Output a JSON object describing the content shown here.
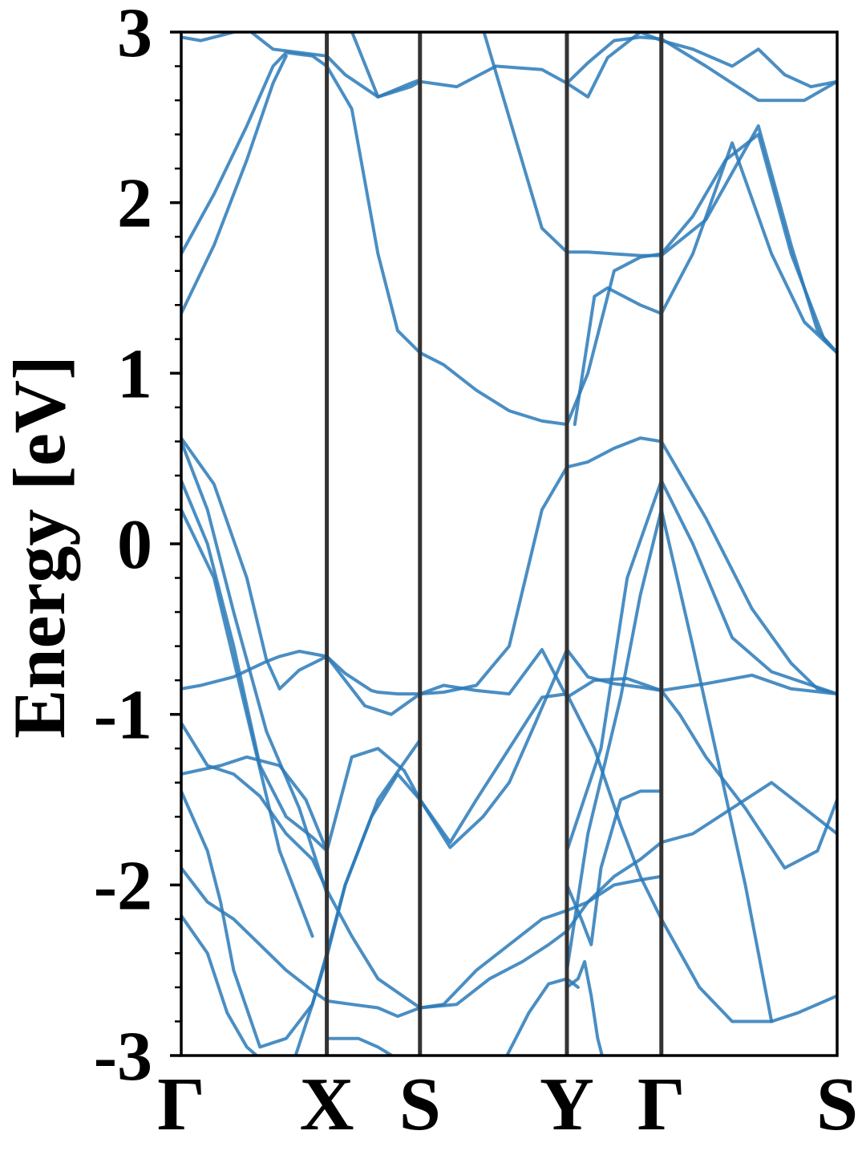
{
  "chart_data": {
    "type": "line",
    "title": "",
    "xlabel": "",
    "ylabel": "Energy [eV]",
    "ylim": [
      -3,
      3
    ],
    "y_ticks": [
      {
        "value": 3,
        "label": "3"
      },
      {
        "value": 2,
        "label": "2"
      },
      {
        "value": 1,
        "label": "1"
      },
      {
        "value": 0,
        "label": "0"
      },
      {
        "value": -1,
        "label": "-1"
      },
      {
        "value": -2,
        "label": "-2"
      },
      {
        "value": -3,
        "label": "-3"
      }
    ],
    "k_points": [
      {
        "label": "Γ",
        "pos": 0.0
      },
      {
        "label": "X",
        "pos": 0.222
      },
      {
        "label": "S",
        "pos": 0.364
      },
      {
        "label": "Y",
        "pos": 0.588
      },
      {
        "label": "Γ",
        "pos": 0.732
      },
      {
        "label": "S",
        "pos": 1.0
      }
    ],
    "xlim": [
      0,
      1
    ],
    "grid": false,
    "colors": {
      "bands": "#2a7ab9",
      "high_symmetry_lines": "#333333",
      "axes": "#000000"
    },
    "series": [
      {
        "x": [
          0.0,
          0.03,
          0.08,
          0.13,
          0.15,
          0.18,
          0.222,
          0.25,
          0.29,
          0.3,
          0.33,
          0.364,
          0.4,
          0.45,
          0.5,
          0.55,
          0.588,
          0.62,
          0.66,
          0.7,
          0.732,
          0.8,
          0.87,
          0.93,
          0.97,
          1.0
        ],
        "values": [
          -0.85,
          -0.83,
          -0.78,
          -0.69,
          -0.66,
          -0.63,
          -0.66,
          -0.76,
          -0.86,
          -0.87,
          -0.88,
          -0.88,
          -0.87,
          -0.83,
          -0.6,
          0.2,
          0.45,
          0.48,
          0.56,
          0.62,
          0.6,
          0.15,
          -0.38,
          -0.7,
          -0.85,
          -0.88
        ]
      },
      {
        "x": [
          0.0,
          0.05,
          0.1,
          0.13,
          0.15,
          0.18,
          0.222,
          0.25,
          0.28,
          0.32,
          0.364,
          0.4,
          0.45,
          0.5,
          0.55,
          0.588,
          0.63,
          0.68,
          0.732,
          0.8,
          0.87,
          0.93,
          1.0
        ],
        "values": [
          0.62,
          0.35,
          -0.2,
          -0.68,
          -0.85,
          -0.74,
          -0.66,
          -0.8,
          -0.95,
          -1.0,
          -0.88,
          -0.83,
          -0.86,
          -0.88,
          -0.62,
          -0.9,
          -0.8,
          -0.79,
          -0.86,
          -0.82,
          -0.77,
          -0.85,
          -0.88
        ]
      },
      {
        "x": [
          0.0,
          0.06,
          0.1,
          0.15,
          0.19,
          0.222,
          0.26,
          0.3,
          0.34,
          0.364,
          0.41,
          0.45,
          0.5,
          0.55,
          0.588,
          0.63,
          0.67,
          0.7,
          0.732,
          0.79,
          0.84,
          0.9,
          0.94,
          1.0
        ],
        "values": [
          -1.35,
          -1.3,
          -1.25,
          -1.3,
          -1.5,
          -1.8,
          -1.25,
          -1.2,
          -1.33,
          -1.5,
          -1.75,
          -1.5,
          -1.2,
          -0.9,
          -0.88,
          -1.2,
          -1.65,
          -1.95,
          -2.2,
          -2.6,
          -2.8,
          -2.8,
          -2.75,
          -2.65
        ]
      },
      {
        "x": [
          0.0,
          0.04,
          0.08,
          0.12,
          0.16,
          0.2,
          0.222,
          0.26,
          0.3,
          0.364,
          0.42,
          0.47,
          0.52,
          0.56,
          0.588,
          0.62,
          0.66,
          0.7,
          0.732,
          0.78,
          0.84,
          0.9,
          0.95,
          1.0
        ],
        "values": [
          -1.05,
          -1.3,
          -1.35,
          -1.48,
          -1.7,
          -1.85,
          -2.03,
          -2.3,
          -2.55,
          -2.72,
          -2.7,
          -2.55,
          -2.45,
          -2.35,
          -2.27,
          -2.1,
          -1.95,
          -1.85,
          -1.75,
          -1.7,
          -1.55,
          -1.4,
          -1.55,
          -1.7
        ]
      },
      {
        "x": [
          0.0,
          0.04,
          0.08,
          0.12,
          0.16,
          0.2,
          0.222,
          0.26,
          0.3,
          0.33,
          0.364,
          0.4,
          0.45,
          0.5,
          0.55,
          0.588,
          0.62,
          0.66,
          0.7,
          0.732
        ],
        "values": [
          -1.9,
          -2.1,
          -2.2,
          -2.35,
          -2.5,
          -2.62,
          -2.68,
          -2.7,
          -2.72,
          -2.77,
          -2.72,
          -2.7,
          -2.5,
          -2.35,
          -2.2,
          -2.15,
          -2.1,
          -2.0,
          -1.97,
          -1.95
        ]
      },
      {
        "x": [
          0.0,
          0.04,
          0.07,
          0.1,
          0.13
        ],
        "values": [
          -2.18,
          -2.4,
          -2.75,
          -2.95,
          -3.05
        ]
      },
      {
        "x": [
          0.0,
          0.04,
          0.06,
          0.08,
          0.12,
          0.16,
          0.2,
          0.222,
          0.25,
          0.29,
          0.33,
          0.364,
          0.41,
          0.46,
          0.5,
          0.54,
          0.588,
          0.62,
          0.66,
          0.7,
          0.732,
          0.76,
          0.8,
          0.86,
          0.92,
          0.97,
          1.0
        ],
        "values": [
          -1.45,
          -1.8,
          -2.1,
          -2.5,
          -2.95,
          -2.9,
          -2.7,
          -2.42,
          -2.0,
          -1.6,
          -1.35,
          -1.5,
          -1.78,
          -1.6,
          -1.4,
          -1.05,
          -0.62,
          -0.78,
          -0.82,
          -0.84,
          -0.86,
          -1.0,
          -1.25,
          -1.55,
          -1.9,
          -1.8,
          -1.5
        ]
      },
      {
        "x": [
          0.0,
          0.03,
          0.06,
          0.1,
          0.14,
          0.18,
          0.222,
          0.25,
          0.3,
          0.35,
          0.364
        ],
        "values": [
          2.97,
          2.95,
          2.98,
          3.02,
          2.9,
          2.88,
          2.86,
          2.75,
          2.62,
          2.7,
          2.72
        ]
      },
      {
        "x": [
          0.0,
          0.05,
          0.1,
          0.14,
          0.16,
          0.2,
          0.222,
          0.26,
          0.3,
          0.33,
          0.364,
          0.4,
          0.45,
          0.5,
          0.55,
          0.588,
          0.62,
          0.66,
          0.7,
          0.732,
          0.78,
          0.83,
          0.88,
          0.93,
          0.98,
          1.0
        ],
        "values": [
          1.7,
          2.05,
          2.45,
          2.8,
          2.88,
          2.86,
          2.8,
          2.55,
          1.7,
          1.25,
          1.12,
          1.05,
          0.9,
          0.78,
          0.72,
          0.7,
          1.0,
          1.6,
          1.68,
          1.7,
          1.92,
          2.25,
          2.4,
          1.7,
          1.2,
          1.12
        ]
      },
      {
        "x": [
          0.0,
          0.05,
          0.1,
          0.14,
          0.16
        ],
        "values": [
          1.35,
          1.75,
          2.25,
          2.7,
          2.86
        ]
      },
      {
        "x": [
          0.25,
          0.3,
          0.35,
          0.364,
          0.42,
          0.48,
          0.55,
          0.588,
          0.62,
          0.66,
          0.7,
          0.732,
          0.8,
          0.88,
          0.95,
          1.0
        ],
        "values": [
          3.1,
          2.62,
          2.68,
          2.71,
          2.68,
          2.8,
          2.78,
          2.7,
          2.82,
          2.95,
          2.97,
          2.96,
          2.8,
          2.6,
          2.6,
          2.71
        ]
      },
      {
        "x": [
          0.45,
          0.5,
          0.55,
          0.588,
          0.62,
          0.66,
          0.7,
          0.732,
          0.8,
          0.88,
          0.93,
          0.97,
          1.0
        ],
        "values": [
          3.15,
          2.5,
          1.85,
          1.71,
          1.71,
          1.7,
          1.69,
          1.69,
          1.9,
          2.45,
          1.75,
          1.25,
          1.12
        ]
      },
      {
        "x": [
          0.588,
          0.62,
          0.65,
          0.7,
          0.732,
          0.78,
          0.84,
          0.88,
          0.92,
          0.96,
          1.0
        ],
        "values": [
          2.7,
          2.62,
          2.85,
          3.0,
          2.95,
          2.9,
          2.8,
          2.9,
          2.75,
          2.68,
          2.71
        ]
      },
      {
        "x": [
          0.6,
          0.63,
          0.65,
          0.7,
          0.732,
          0.78,
          0.84,
          0.9,
          0.95,
          1.0
        ],
        "values": [
          0.7,
          1.45,
          1.5,
          1.4,
          1.35,
          1.7,
          2.35,
          1.7,
          1.3,
          1.12
        ]
      },
      {
        "x": [
          0.0,
          0.04,
          0.08,
          0.13,
          0.18,
          0.222
        ],
        "values": [
          0.6,
          0.2,
          -0.4,
          -1.1,
          -1.55,
          -2.05
        ]
      },
      {
        "x": [
          0.0,
          0.04,
          0.08,
          0.12,
          0.16,
          0.2,
          0.222
        ],
        "values": [
          0.37,
          0.0,
          -0.6,
          -1.3,
          -1.6,
          -1.72,
          -1.8
        ]
      },
      {
        "x": [
          0.0,
          0.05,
          0.1,
          0.15,
          0.2
        ],
        "values": [
          0.2,
          -0.2,
          -1.0,
          -1.8,
          -2.3
        ]
      },
      {
        "x": [
          0.588,
          0.64,
          0.68,
          0.732,
          0.78,
          0.84,
          0.9,
          1.0
        ],
        "values": [
          -1.8,
          -1.2,
          -0.2,
          0.37,
          0.0,
          -0.55,
          -0.75,
          -0.88
        ]
      },
      {
        "x": [
          0.588,
          0.62,
          0.67,
          0.7,
          0.732,
          0.78,
          0.82,
          0.86,
          0.9
        ],
        "values": [
          -2.5,
          -1.7,
          -0.9,
          -0.3,
          0.2,
          -0.6,
          -1.3,
          -2.0,
          -2.8
        ]
      },
      {
        "x": [
          0.588,
          0.61,
          0.625,
          0.64,
          0.67,
          0.7,
          0.732
        ],
        "values": [
          -2.0,
          -2.2,
          -2.35,
          -1.9,
          -1.5,
          -1.45,
          -1.45
        ]
      },
      {
        "x": [
          0.588,
          0.605,
          0.615,
          0.625,
          0.635,
          0.645
        ],
        "values": [
          -2.6,
          -2.55,
          -2.45,
          -2.65,
          -2.9,
          -3.05
        ]
      },
      {
        "x": [
          0.49,
          0.53,
          0.56,
          0.588,
          0.605
        ],
        "values": [
          -3.05,
          -2.75,
          -2.58,
          -2.55,
          -2.6
        ]
      },
      {
        "x": [
          0.17,
          0.2,
          0.222,
          0.25,
          0.3,
          0.364
        ],
        "values": [
          -3.05,
          -2.7,
          -2.4,
          -2.0,
          -1.5,
          -1.15
        ]
      },
      {
        "x": [
          0.225,
          0.27,
          0.3,
          0.33
        ],
        "values": [
          -2.9,
          -2.9,
          -2.95,
          -3.02
        ]
      }
    ]
  }
}
